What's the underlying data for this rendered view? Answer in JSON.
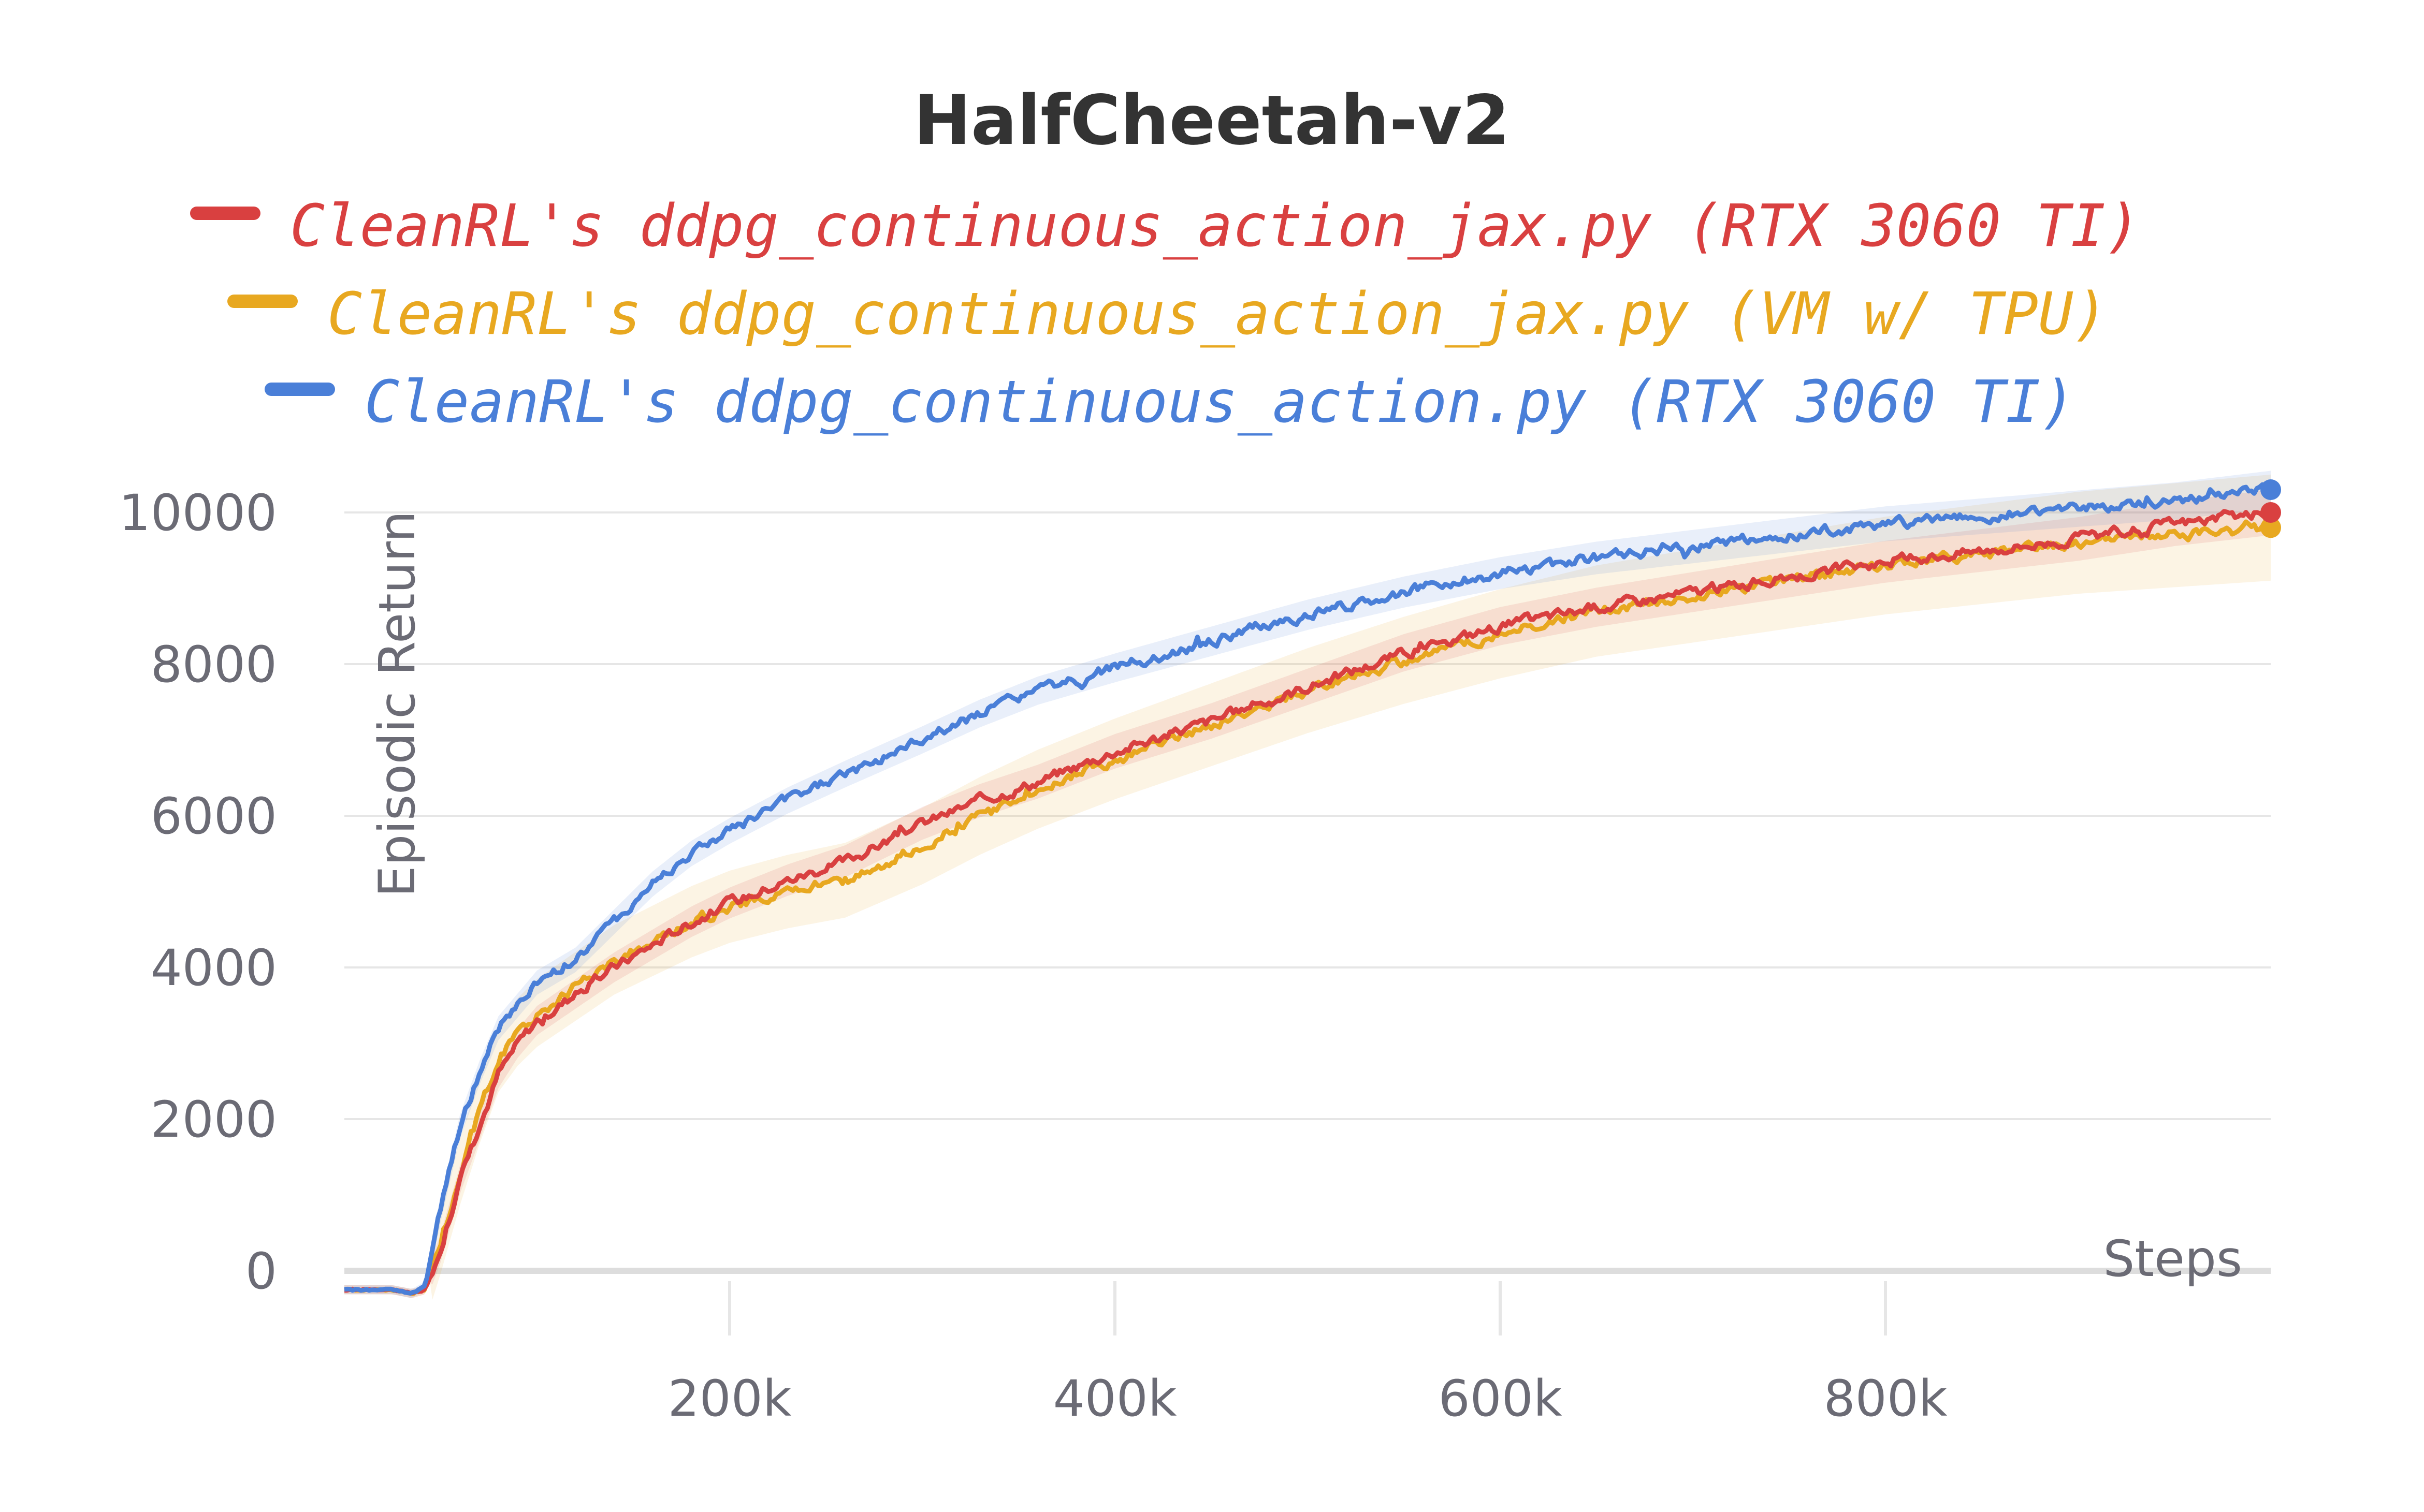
{
  "chart_data": {
    "type": "line",
    "title": "HalfCheetah-v2",
    "xlabel": "Steps",
    "ylabel": "Episodic Return",
    "xlim": [
      0,
      1000000
    ],
    "ylim": [
      -500,
      10500
    ],
    "x_ticks": [
      200000,
      400000,
      600000,
      800000
    ],
    "x_tick_labels": [
      "200k",
      "400k",
      "600k",
      "800k"
    ],
    "y_ticks": [
      0,
      2000,
      4000,
      6000,
      8000,
      10000
    ],
    "y_tick_labels": [
      "0",
      "2000",
      "4000",
      "6000",
      "8000",
      "10000"
    ],
    "grid": true,
    "legend_position": "top-center",
    "series": [
      {
        "name": "CleanRL's ddpg_continuous_action_jax.py (RTX 3060 TI)",
        "color": "#d94040",
        "band": 300,
        "x": [
          0,
          25000,
          35000,
          42000,
          50000,
          60000,
          70000,
          80000,
          90000,
          100000,
          120000,
          140000,
          160000,
          180000,
          200000,
          230000,
          260000,
          300000,
          330000,
          360000,
          400000,
          450000,
          500000,
          550000,
          600000,
          650000,
          700000,
          750000,
          800000,
          850000,
          900000,
          950000,
          1000000
        ],
        "y": [
          -250,
          -250,
          -300,
          -250,
          300,
          1200,
          1900,
          2600,
          3000,
          3300,
          3650,
          4000,
          4300,
          4600,
          4850,
          5150,
          5400,
          5900,
          6200,
          6450,
          6850,
          7250,
          7700,
          8150,
          8500,
          8750,
          8950,
          9150,
          9350,
          9500,
          9650,
          9850,
          10000
        ]
      },
      {
        "name": "CleanRL's ddpg_continuous_action_jax.py (VM w/ TPU)",
        "color": "#e8a820",
        "band": 700,
        "x": [
          0,
          25000,
          35000,
          42000,
          50000,
          60000,
          70000,
          80000,
          90000,
          100000,
          120000,
          140000,
          160000,
          180000,
          200000,
          230000,
          260000,
          300000,
          330000,
          360000,
          400000,
          450000,
          500000,
          550000,
          600000,
          650000,
          700000,
          750000,
          800000,
          850000,
          900000,
          950000,
          1000000
        ],
        "y": [
          -250,
          -250,
          -300,
          -250,
          400,
          1300,
          2100,
          2800,
          3150,
          3400,
          3750,
          4100,
          4350,
          4600,
          4800,
          5000,
          5150,
          5600,
          6000,
          6350,
          6750,
          7200,
          7650,
          8050,
          8400,
          8700,
          8900,
          9100,
          9300,
          9450,
          9600,
          9700,
          9800
        ]
      },
      {
        "name": "CleanRL's ddpg_continuous_action.py (RTX 3060 TI)",
        "color": "#4a7fd8",
        "band": 250,
        "x": [
          0,
          25000,
          35000,
          42000,
          50000,
          60000,
          70000,
          80000,
          90000,
          100000,
          120000,
          140000,
          160000,
          180000,
          200000,
          230000,
          260000,
          300000,
          330000,
          360000,
          400000,
          450000,
          500000,
          550000,
          600000,
          650000,
          700000,
          750000,
          800000,
          850000,
          900000,
          950000,
          1000000
        ],
        "y": [
          -250,
          -250,
          -300,
          -200,
          800,
          1900,
          2600,
          3200,
          3500,
          3800,
          4100,
          4600,
          5100,
          5500,
          5800,
          6200,
          6550,
          7000,
          7350,
          7650,
          7950,
          8300,
          8650,
          8950,
          9200,
          9400,
          9550,
          9700,
          9850,
          9950,
          10050,
          10150,
          10300
        ]
      }
    ]
  }
}
